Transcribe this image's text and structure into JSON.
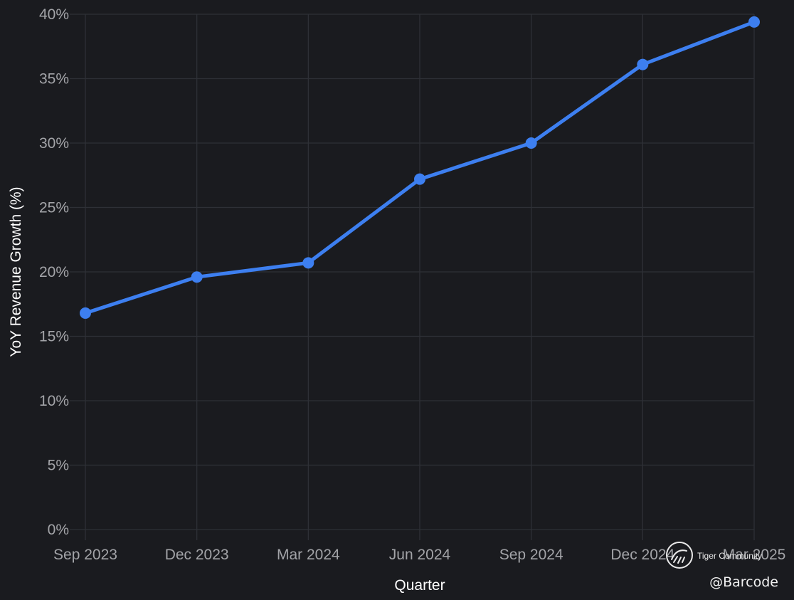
{
  "colors": {
    "background": "#1a1b1f",
    "line": "#3d7ff0",
    "grid": "#2e3036",
    "tick_text": "#a3a4a8",
    "axis_title": "#ffffff"
  },
  "chart_data": {
    "type": "line",
    "title": "",
    "xlabel": "Quarter",
    "ylabel": "YoY Revenue Growth (%)",
    "categories": [
      "Sep 2023",
      "Dec 2023",
      "Mar 2024",
      "Jun 2024",
      "Sep 2024",
      "Dec 2024",
      "Mar 2025"
    ],
    "series": [
      {
        "values": [
          16.8,
          19.6,
          20.7,
          27.2,
          30.0,
          36.1,
          39.4
        ]
      }
    ],
    "ylim": [
      0,
      40
    ],
    "y_ticks": [
      0,
      5,
      10,
      15,
      20,
      25,
      30,
      35,
      40
    ],
    "y_tick_labels": [
      "0%",
      "5%",
      "10%",
      "15%",
      "20%",
      "25%",
      "30%",
      "35%",
      "40%"
    ],
    "grid": true,
    "legend": false,
    "markers": true
  },
  "watermark": {
    "brand": "Tiger Community",
    "handle": "@Barcode",
    "icon": "tiger-community-logo"
  }
}
